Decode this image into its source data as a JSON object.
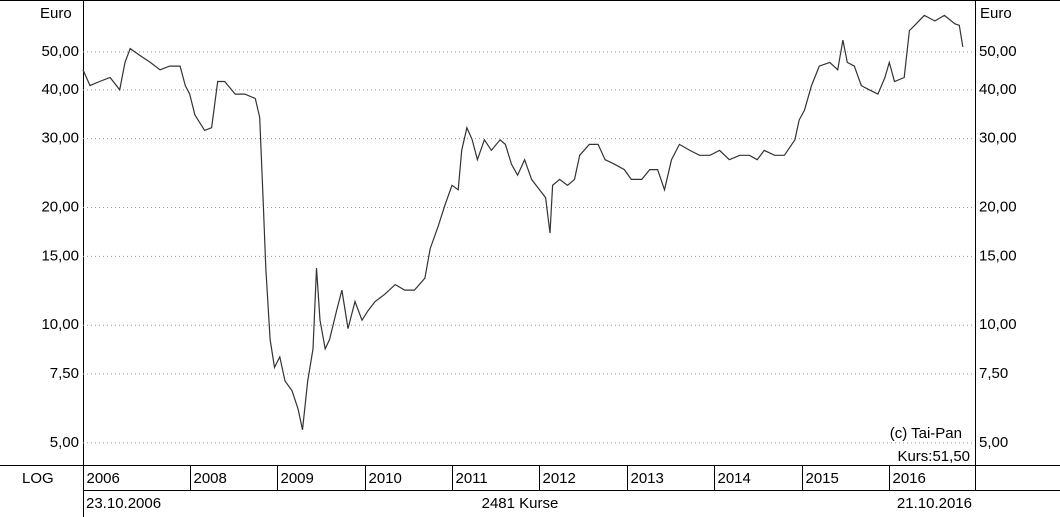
{
  "chart_data": {
    "type": "line",
    "y_unit": "Euro",
    "scale_label": "LOG",
    "copyright": "(c) Tai-Pan",
    "last_price": "Kurs:51,50",
    "start_date": "23.10.2006",
    "end_date": "21.10.2016",
    "count_label": "2481 Kurse",
    "log_scale": true,
    "grid": true,
    "color": "#333333",
    "xlim": [
      2006.78,
      2016.98
    ],
    "xticks": [
      {
        "value": 2006.78,
        "label": "2006"
      },
      2008,
      2009,
      2010,
      2011,
      2012,
      2013,
      2014,
      2015,
      2016
    ],
    "ylim": [
      4.39,
      66.7
    ],
    "yticks": [
      {
        "value": 5,
        "label": "5,00"
      },
      {
        "value": 7.5,
        "label": "7,50"
      },
      {
        "value": 10,
        "label": "10,00"
      },
      {
        "value": 15,
        "label": "15,00"
      },
      {
        "value": 20,
        "label": "20,00"
      },
      {
        "value": 30,
        "label": "30,00"
      },
      {
        "value": 40,
        "label": "40,00"
      },
      {
        "value": 50,
        "label": "50,00"
      }
    ],
    "x": [
      2006.78,
      2006.86,
      2006.97,
      2007.09,
      2007.2,
      2007.26,
      2007.32,
      2007.43,
      2007.55,
      2007.66,
      2007.77,
      2007.89,
      2007.95,
      2008.0,
      2008.06,
      2008.17,
      2008.25,
      2008.32,
      2008.4,
      2008.52,
      2008.63,
      2008.75,
      2008.8,
      2008.84,
      2008.87,
      2008.92,
      2008.97,
      2009.03,
      2009.09,
      2009.17,
      2009.24,
      2009.29,
      2009.35,
      2009.41,
      2009.45,
      2009.49,
      2009.55,
      2009.6,
      2009.68,
      2009.74,
      2009.81,
      2009.89,
      2009.97,
      2010.04,
      2010.12,
      2010.23,
      2010.35,
      2010.46,
      2010.57,
      2010.69,
      2010.75,
      2010.84,
      2010.92,
      2011.0,
      2011.07,
      2011.11,
      2011.17,
      2011.23,
      2011.29,
      2011.37,
      2011.45,
      2011.55,
      2011.61,
      2011.68,
      2011.75,
      2011.83,
      2011.91,
      2012.0,
      2012.07,
      2012.12,
      2012.15,
      2012.23,
      2012.32,
      2012.4,
      2012.46,
      2012.57,
      2012.67,
      2012.75,
      2012.86,
      2012.97,
      2013.05,
      2013.17,
      2013.26,
      2013.35,
      2013.43,
      2013.51,
      2013.6,
      2013.72,
      2013.83,
      2013.95,
      2014.06,
      2014.17,
      2014.29,
      2014.4,
      2014.49,
      2014.57,
      2014.69,
      2014.8,
      2014.92,
      2014.97,
      2015.03,
      2015.11,
      2015.2,
      2015.32,
      2015.41,
      2015.47,
      2015.52,
      2015.6,
      2015.68,
      2015.77,
      2015.87,
      2015.95,
      2016.0,
      2016.06,
      2016.17,
      2016.23,
      2016.29,
      2016.4,
      2016.52,
      2016.63,
      2016.75,
      2016.8,
      2016.84
    ],
    "values": [
      45,
      41,
      42,
      43,
      40,
      47,
      51,
      49,
      47,
      45,
      46,
      46,
      41,
      39,
      34.5,
      31.5,
      32,
      42,
      42,
      39,
      39,
      38,
      34,
      21,
      14,
      9.2,
      7.8,
      8.3,
      7.2,
      6.8,
      6.1,
      5.4,
      7.2,
      8.7,
      14,
      10.3,
      8.7,
      9.2,
      10.9,
      12.3,
      9.8,
      11.5,
      10.3,
      10.9,
      11.5,
      12,
      12.7,
      12.3,
      12.3,
      13.2,
      15.7,
      17.9,
      20.3,
      22.8,
      22.2,
      28,
      32,
      29.8,
      26.5,
      29.8,
      28,
      29.8,
      29,
      25.8,
      24.2,
      26.5,
      23.6,
      22.2,
      21.2,
      17.2,
      22.8,
      23.6,
      22.8,
      23.6,
      27.2,
      29,
      29,
      26.5,
      25.8,
      25,
      23.6,
      23.6,
      25,
      25,
      22.2,
      26.5,
      29,
      28,
      27.2,
      27.2,
      28,
      26.5,
      27.2,
      27.2,
      26.5,
      28,
      27.2,
      27.2,
      29.8,
      33.5,
      35.5,
      41,
      46,
      47,
      45,
      53.6,
      47,
      46,
      41,
      40,
      39,
      43,
      47,
      42,
      43,
      56.7,
      58.5,
      62,
      60,
      62,
      59,
      58.5,
      51.5
    ]
  }
}
